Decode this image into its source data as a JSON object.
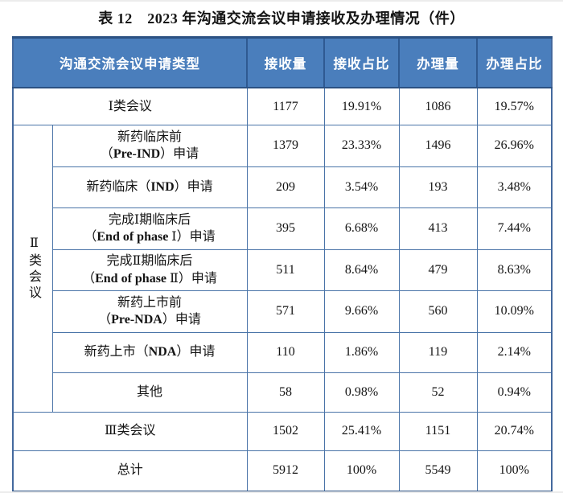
{
  "page": {
    "title": "表 12　2023 年沟通交流会议申请接收及办理情况（件）"
  },
  "colors": {
    "header_bg": "#4A7EBC",
    "header_text": "#FFFFFF",
    "inner_border": "#4A74A8",
    "dark_border": "#2B5183",
    "side_border": "#44699E"
  },
  "table": {
    "columns": [
      "沟通交流会议申请类型",
      "接收量",
      "接收占比",
      "办理量",
      "办理占比"
    ],
    "group_label": "Ⅱ类会议",
    "rows": [
      {
        "scope": "full",
        "label_lines": [
          "Ⅰ类会议"
        ],
        "received": "1177",
        "received_share": "19.91%",
        "handled": "1086",
        "handled_share": "19.57%"
      },
      {
        "scope": "sub",
        "label_lines": [
          "新药临床前",
          "（Pre-IND）申请"
        ],
        "received": "1379",
        "received_share": "23.33%",
        "handled": "1496",
        "handled_share": "26.96%"
      },
      {
        "scope": "sub",
        "label_lines": [
          "新药临床（IND）申请"
        ],
        "received": "209",
        "received_share": "3.54%",
        "handled": "193",
        "handled_share": "3.48%"
      },
      {
        "scope": "sub",
        "label_lines": [
          "完成Ⅰ期临床后",
          "（End of phase Ⅰ）申请"
        ],
        "received": "395",
        "received_share": "6.68%",
        "handled": "413",
        "handled_share": "7.44%"
      },
      {
        "scope": "sub",
        "label_lines": [
          "完成Ⅱ期临床后",
          "（End of phase Ⅱ）申请"
        ],
        "received": "511",
        "received_share": "8.64%",
        "handled": "479",
        "handled_share": "8.63%"
      },
      {
        "scope": "sub",
        "label_lines": [
          "新药上市前",
          "（Pre-NDA）申请"
        ],
        "received": "571",
        "received_share": "9.66%",
        "handled": "560",
        "handled_share": "10.09%"
      },
      {
        "scope": "sub",
        "label_lines": [
          "新药上市（NDA）申请"
        ],
        "received": "110",
        "received_share": "1.86%",
        "handled": "119",
        "handled_share": "2.14%"
      },
      {
        "scope": "sub",
        "label_lines": [
          "其他"
        ],
        "received": "58",
        "received_share": "0.98%",
        "handled": "52",
        "handled_share": "0.94%"
      },
      {
        "scope": "full",
        "label_lines": [
          "Ⅲ类会议"
        ],
        "received": "1502",
        "received_share": "25.41%",
        "handled": "1151",
        "handled_share": "20.74%"
      },
      {
        "scope": "full",
        "label_lines": [
          "总计"
        ],
        "received": "5912",
        "received_share": "100%",
        "handled": "5549",
        "handled_share": "100%"
      }
    ]
  }
}
